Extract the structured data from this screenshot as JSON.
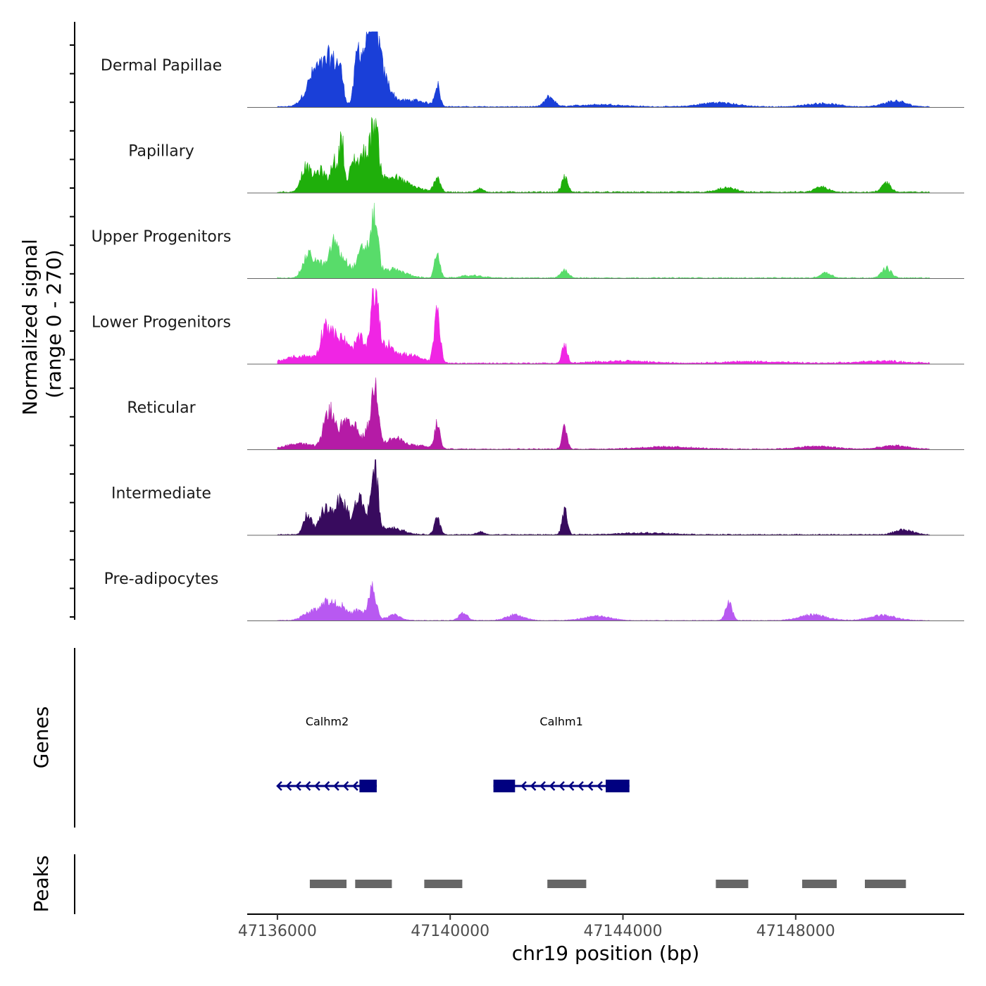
{
  "chart_data": {
    "type": "area",
    "title": "",
    "xlabel": "chr19 position (bp)",
    "ylabel": [
      "Normalized signal",
      "(range 0 - 270)"
    ],
    "xlim": [
      47135300,
      47151900
    ],
    "ylim": [
      0,
      270
    ],
    "x_ticks": [
      47136000,
      47140000,
      47144000,
      47148000
    ],
    "tick_labels": [
      "47136000",
      "47140000",
      "47144000",
      "47148000"
    ],
    "coverage": {
      "region_start": 47136000,
      "region_end": 47151100,
      "tracks": [
        {
          "name": "Dermal Papillae",
          "color": "#1a3fd8",
          "baseline": 3,
          "peaks": [
            [
              47136800,
              70,
              190
            ],
            [
              47137000,
              90,
              170
            ],
            [
              47137250,
              135,
              120
            ],
            [
              47137450,
              110,
              80
            ],
            [
              47137850,
              130,
              70
            ],
            [
              47138050,
              170,
              150
            ],
            [
              47138230,
              240,
              110
            ],
            [
              47138450,
              90,
              160
            ],
            [
              47138800,
              12,
              400
            ],
            [
              47139200,
              15,
              300
            ],
            [
              47139700,
              75,
              60
            ],
            [
              47142300,
              35,
              110
            ],
            [
              47143500,
              8,
              500
            ],
            [
              47146200,
              15,
              400
            ],
            [
              47148600,
              12,
              350
            ],
            [
              47150300,
              20,
              250
            ]
          ]
        },
        {
          "name": "Papillary",
          "color": "#1faf0b",
          "baseline": 4,
          "peaks": [
            [
              47136650,
              85,
              110
            ],
            [
              47137000,
              75,
              150
            ],
            [
              47137300,
              105,
              60
            ],
            [
              47137480,
              215,
              55
            ],
            [
              47137750,
              95,
              90
            ],
            [
              47138000,
              130,
              120
            ],
            [
              47138250,
              225,
              90
            ],
            [
              47138600,
              45,
              250
            ],
            [
              47139000,
              20,
              300
            ],
            [
              47139700,
              55,
              70
            ],
            [
              47140700,
              12,
              80
            ],
            [
              47142650,
              50,
              70
            ],
            [
              47146400,
              15,
              200
            ],
            [
              47148600,
              18,
              150
            ],
            [
              47150100,
              35,
              100
            ]
          ]
        },
        {
          "name": "Upper Progenitors",
          "color": "#58dc6a",
          "baseline": 3,
          "peaks": [
            [
              47136700,
              65,
              120
            ],
            [
              47137000,
              50,
              200
            ],
            [
              47137300,
              90,
              80
            ],
            [
              47137500,
              70,
              150
            ],
            [
              47138000,
              105,
              140
            ],
            [
              47138250,
              190,
              80
            ],
            [
              47138650,
              30,
              300
            ],
            [
              47139700,
              95,
              60
            ],
            [
              47140500,
              8,
              250
            ],
            [
              47142650,
              28,
              90
            ],
            [
              47148700,
              20,
              120
            ],
            [
              47150100,
              35,
              110
            ]
          ]
        },
        {
          "name": "Lower Progenitors",
          "color": "#f025e4",
          "baseline": 4,
          "peaks": [
            [
              47136600,
              25,
              400
            ],
            [
              47137100,
              95,
              100
            ],
            [
              47137300,
              80,
              150
            ],
            [
              47137550,
              60,
              120
            ],
            [
              47137900,
              90,
              120
            ],
            [
              47138250,
              255,
              90
            ],
            [
              47138550,
              55,
              150
            ],
            [
              47139000,
              30,
              300
            ],
            [
              47139700,
              180,
              70
            ],
            [
              47142650,
              65,
              60
            ],
            [
              47144000,
              8,
              600
            ],
            [
              47147000,
              6,
              700
            ],
            [
              47150000,
              8,
              500
            ]
          ]
        },
        {
          "name": "Reticular",
          "color": "#b51ba6",
          "baseline": 3,
          "peaks": [
            [
              47136500,
              20,
              300
            ],
            [
              47137200,
              140,
              120
            ],
            [
              47137550,
              90,
              120
            ],
            [
              47137800,
              70,
              100
            ],
            [
              47138100,
              65,
              100
            ],
            [
              47138270,
              215,
              80
            ],
            [
              47138700,
              35,
              200
            ],
            [
              47139200,
              12,
              300
            ],
            [
              47139700,
              90,
              60
            ],
            [
              47142650,
              75,
              60
            ],
            [
              47145000,
              8,
              600
            ],
            [
              47148500,
              10,
              400
            ],
            [
              47150300,
              12,
              300
            ]
          ]
        },
        {
          "name": "Intermediate",
          "color": "#380b5e",
          "baseline": 3,
          "peaks": [
            [
              47136700,
              75,
              90
            ],
            [
              47137100,
              90,
              120
            ],
            [
              47137400,
              100,
              120
            ],
            [
              47137600,
              70,
              100
            ],
            [
              47137850,
              100,
              80
            ],
            [
              47138000,
              80,
              100
            ],
            [
              47138250,
              235,
              80
            ],
            [
              47138650,
              25,
              250
            ],
            [
              47139700,
              55,
              70
            ],
            [
              47140700,
              10,
              80
            ],
            [
              47142650,
              85,
              60
            ],
            [
              47144500,
              6,
              600
            ],
            [
              47150500,
              18,
              200
            ]
          ]
        },
        {
          "name": "Pre-adipocytes",
          "color": "#b859f1",
          "baseline": 2,
          "peaks": [
            [
              47136800,
              30,
              200
            ],
            [
              47137150,
              60,
              150
            ],
            [
              47137450,
              50,
              120
            ],
            [
              47137850,
              35,
              150
            ],
            [
              47138200,
              110,
              90
            ],
            [
              47138700,
              20,
              150
            ],
            [
              47140300,
              25,
              100
            ],
            [
              47141500,
              20,
              200
            ],
            [
              47143400,
              15,
              300
            ],
            [
              47146450,
              60,
              80
            ],
            [
              47148400,
              20,
              300
            ],
            [
              47150000,
              18,
              300
            ]
          ]
        }
      ]
    },
    "genes": {
      "strand_color": "#000080",
      "items": [
        {
          "name": "Calhm2",
          "start": 47136000,
          "end": 47138300,
          "strand": "-",
          "exons": [
            [
              47137900,
              47138300
            ]
          ]
        },
        {
          "name": "Calhm1",
          "start": 47141000,
          "end": 47144150,
          "strand": "-",
          "exons": [
            [
              47141000,
              47141500
            ],
            [
              47143600,
              47144150
            ]
          ]
        }
      ]
    },
    "peaks": {
      "color": "#666666",
      "items": [
        [
          47136750,
          47137600
        ],
        [
          47137800,
          47138650
        ],
        [
          47139400,
          47140280
        ],
        [
          47142250,
          47143150
        ],
        [
          47146150,
          47146900
        ],
        [
          47148150,
          47148950
        ],
        [
          47149600,
          47150550
        ]
      ]
    },
    "panel_titles": {
      "genes": "Genes",
      "peaks": "Peaks"
    }
  }
}
